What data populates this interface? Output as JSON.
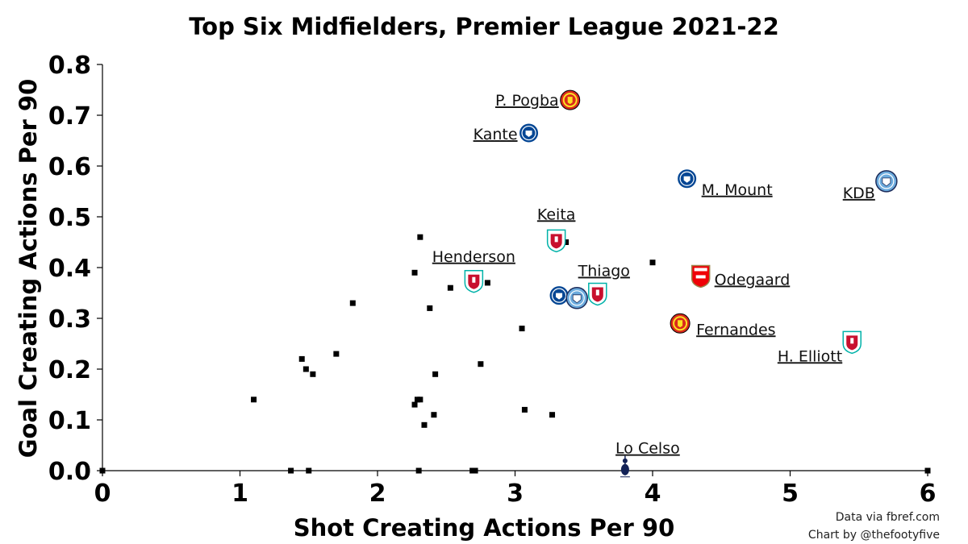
{
  "chart_data": {
    "type": "scatter",
    "title": "Top Six Midfielders, Premier League 2021-22",
    "xlabel": "Shot Creating Actions Per 90",
    "ylabel": "Goal Creating Actions Per 90",
    "xlim": [
      0,
      6
    ],
    "ylim": [
      0,
      0.8
    ],
    "x_ticks": [
      "0",
      "1",
      "2",
      "3",
      "4",
      "5",
      "6"
    ],
    "y_ticks": [
      "0.0",
      "0.1",
      "0.2",
      "0.3",
      "0.4",
      "0.5",
      "0.6",
      "0.7",
      "0.8"
    ],
    "grid": false,
    "labeled_players": [
      {
        "name": "P. Pogba",
        "club": "man-utd",
        "x": 3.4,
        "y": 0.73
      },
      {
        "name": "Kante",
        "club": "chelsea",
        "x": 3.1,
        "y": 0.665
      },
      {
        "name": "M. Mount",
        "club": "chelsea",
        "x": 4.25,
        "y": 0.575
      },
      {
        "name": "KDB",
        "club": "man-city",
        "x": 5.7,
        "y": 0.57
      },
      {
        "name": "Keita",
        "club": "liverpool",
        "x": 3.3,
        "y": 0.455
      },
      {
        "name": "Henderson",
        "club": "liverpool",
        "x": 2.7,
        "y": 0.375
      },
      {
        "name": "Thiago",
        "club": "liverpool",
        "x": 3.6,
        "y": 0.35
      },
      {
        "name": "Odegaard",
        "club": "arsenal",
        "x": 4.35,
        "y": 0.385
      },
      {
        "name": "Fernandes",
        "club": "man-utd",
        "x": 4.2,
        "y": 0.29
      },
      {
        "name": "H. Elliott",
        "club": "liverpool",
        "x": 5.45,
        "y": 0.255
      },
      {
        "name": "Lo Celso",
        "club": "tottenham",
        "x": 3.8,
        "y": 0.01
      }
    ],
    "unlabeled_markers": [
      {
        "club": "chelsea",
        "x": 3.32,
        "y": 0.345
      },
      {
        "club": "man-city",
        "x": 3.45,
        "y": 0.34
      }
    ],
    "other_points": [
      {
        "x": 0.0,
        "y": 0.0
      },
      {
        "x": 1.1,
        "y": 0.14
      },
      {
        "x": 1.37,
        "y": 0.0
      },
      {
        "x": 1.45,
        "y": 0.22
      },
      {
        "x": 1.48,
        "y": 0.2
      },
      {
        "x": 1.5,
        "y": 0.0
      },
      {
        "x": 1.53,
        "y": 0.19
      },
      {
        "x": 1.7,
        "y": 0.23
      },
      {
        "x": 1.82,
        "y": 0.33
      },
      {
        "x": 2.27,
        "y": 0.39
      },
      {
        "x": 2.31,
        "y": 0.46
      },
      {
        "x": 2.27,
        "y": 0.13
      },
      {
        "x": 2.29,
        "y": 0.14
      },
      {
        "x": 2.31,
        "y": 0.14
      },
      {
        "x": 2.3,
        "y": 0.0
      },
      {
        "x": 2.34,
        "y": 0.09
      },
      {
        "x": 2.38,
        "y": 0.32
      },
      {
        "x": 2.41,
        "y": 0.11
      },
      {
        "x": 2.42,
        "y": 0.19
      },
      {
        "x": 2.53,
        "y": 0.36
      },
      {
        "x": 2.69,
        "y": 0.0
      },
      {
        "x": 2.71,
        "y": 0.0
      },
      {
        "x": 2.75,
        "y": 0.21
      },
      {
        "x": 2.8,
        "y": 0.37
      },
      {
        "x": 3.05,
        "y": 0.28
      },
      {
        "x": 3.07,
        "y": 0.12
      },
      {
        "x": 3.27,
        "y": 0.11
      },
      {
        "x": 3.37,
        "y": 0.45
      },
      {
        "x": 4.0,
        "y": 0.41
      },
      {
        "x": 6.0,
        "y": 0.0
      }
    ],
    "credits": [
      "Data via fbref.com",
      "Chart by @thefootyfive"
    ]
  },
  "colors": {
    "man-utd": "#DA291C",
    "man-utd-accent": "#FBE122",
    "chelsea": "#034694",
    "man-city": "#6CABDD",
    "liverpool": "#C8102E",
    "liverpool-accent": "#00B2A9",
    "arsenal": "#EF0107",
    "arsenal-accent": "#9C824A",
    "tottenham": "#132257",
    "point": "#000000"
  }
}
